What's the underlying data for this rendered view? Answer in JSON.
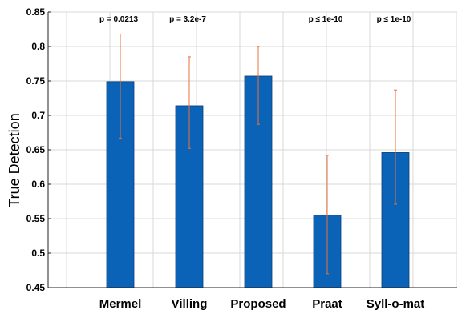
{
  "chart_data": {
    "type": "bar",
    "ylabel": "True Detection",
    "xlabel": "",
    "ylim": [
      0.45,
      0.85
    ],
    "yticks": [
      0.45,
      0.5,
      0.55,
      0.6,
      0.65,
      0.7,
      0.75,
      0.8,
      0.85
    ],
    "ytick_labels": [
      "0.45",
      "0.5",
      "0.55",
      "0.6",
      "0.65",
      "0.7",
      "0.75",
      "0.8",
      "0.85"
    ],
    "grid": true,
    "categories": [
      "Mermel",
      "Villing",
      "Proposed",
      "Praat",
      "Syll-o-mat"
    ],
    "values": [
      0.749,
      0.714,
      0.757,
      0.555,
      0.646
    ],
    "error_low": [
      0.667,
      0.652,
      0.687,
      0.47,
      0.571
    ],
    "error_high": [
      0.818,
      0.785,
      0.8,
      0.642,
      0.737
    ],
    "annotations": [
      "p = 0.0213",
      "p = 3.2e-7",
      "",
      "p ≤ 1e-10",
      "p ≤ 1e-10"
    ],
    "colors": {
      "bar": "#0b63b8",
      "bar_edge": "#0a3d78",
      "error": "#e8703a",
      "grid": "#d9d9d9"
    }
  }
}
